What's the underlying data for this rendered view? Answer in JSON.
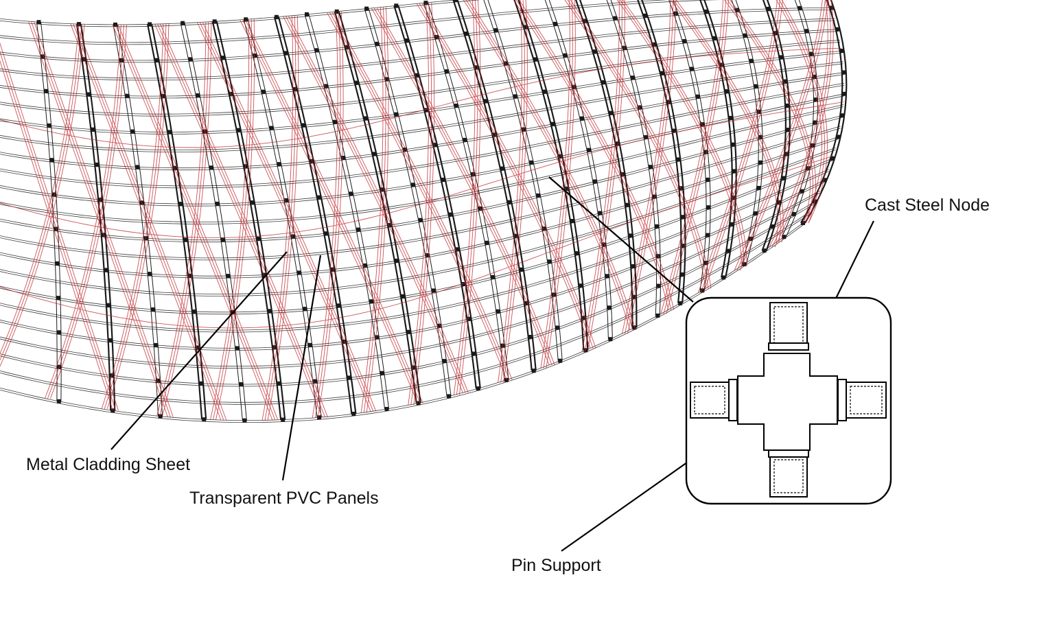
{
  "labels": {
    "metal_cladding_sheet": "Metal Cladding Sheet",
    "transparent_pvc_panels": "Transparent PVC Panels",
    "pin_support": "Pin Support",
    "cast_steel_node": "Cast Steel Node"
  },
  "colors": {
    "frame_lines": "#1a1a1a",
    "panel_lines": "#c0272d",
    "leader_lines": "#000000",
    "background": "#ffffff"
  }
}
